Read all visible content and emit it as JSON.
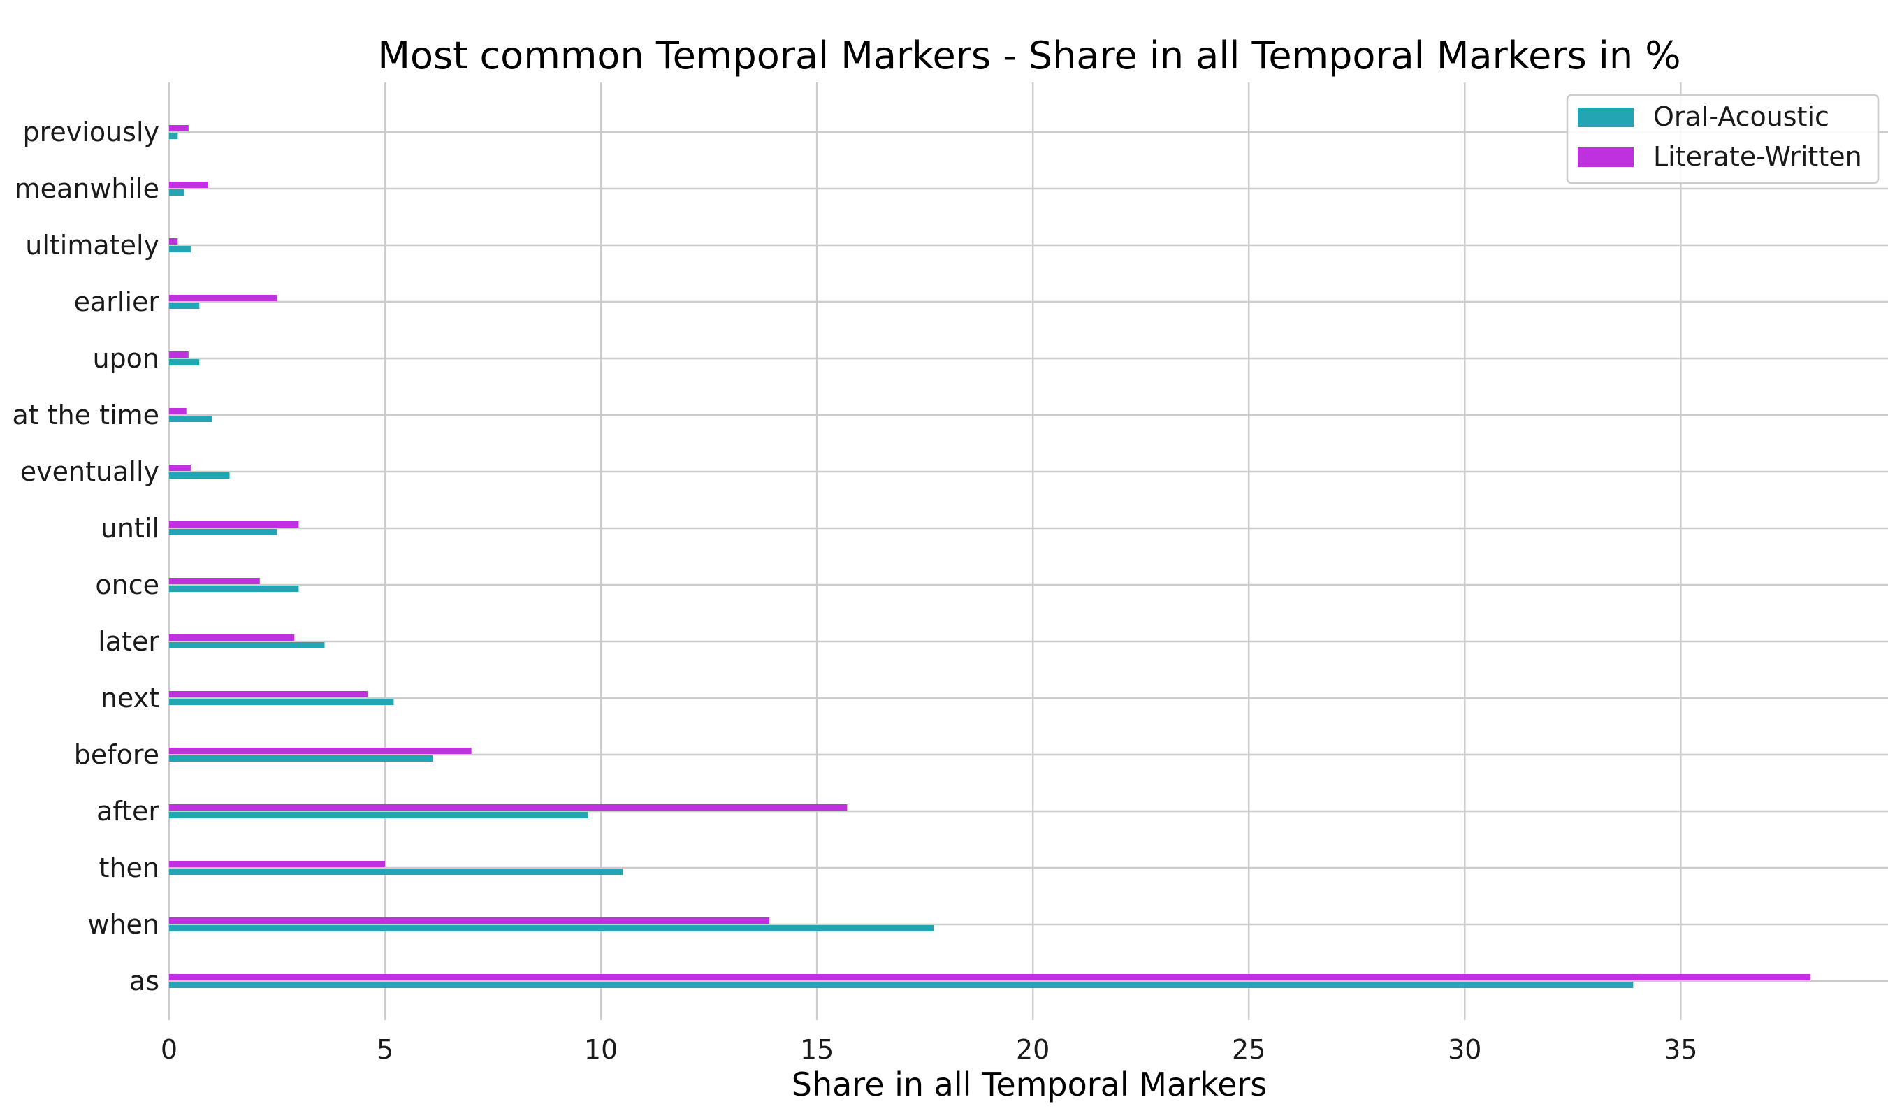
{
  "chart_data": {
    "type": "bar",
    "orientation": "horizontal",
    "title": "Most common Temporal Markers - Share in all Temporal Markers in %",
    "xlabel": "Share in all Temporal Markers",
    "ylabel": "",
    "xlim": [
      0,
      39.8
    ],
    "xticks": [
      0,
      5,
      10,
      15,
      20,
      25,
      30,
      35
    ],
    "grid": true,
    "legend_position": "top-right",
    "categories": [
      "as",
      "when",
      "then",
      "after",
      "before",
      "next",
      "later",
      "once",
      "until",
      "eventually",
      "at the time",
      "upon",
      "earlier",
      "ultimately",
      "meanwhile",
      "previously"
    ],
    "series": [
      {
        "name": "Oral-Acoustic",
        "color": "#23A5B4",
        "values": [
          33.9,
          17.7,
          10.5,
          9.7,
          6.1,
          5.2,
          3.6,
          3.0,
          2.5,
          1.4,
          1.0,
          0.7,
          0.7,
          0.5,
          0.35,
          0.2
        ]
      },
      {
        "name": "Literate-Written",
        "color": "#BF30DF",
        "values": [
          38.0,
          13.9,
          5.0,
          15.7,
          7.0,
          4.6,
          2.9,
          2.1,
          3.0,
          0.5,
          0.4,
          0.45,
          2.5,
          0.2,
          0.9,
          0.45
        ]
      }
    ]
  }
}
